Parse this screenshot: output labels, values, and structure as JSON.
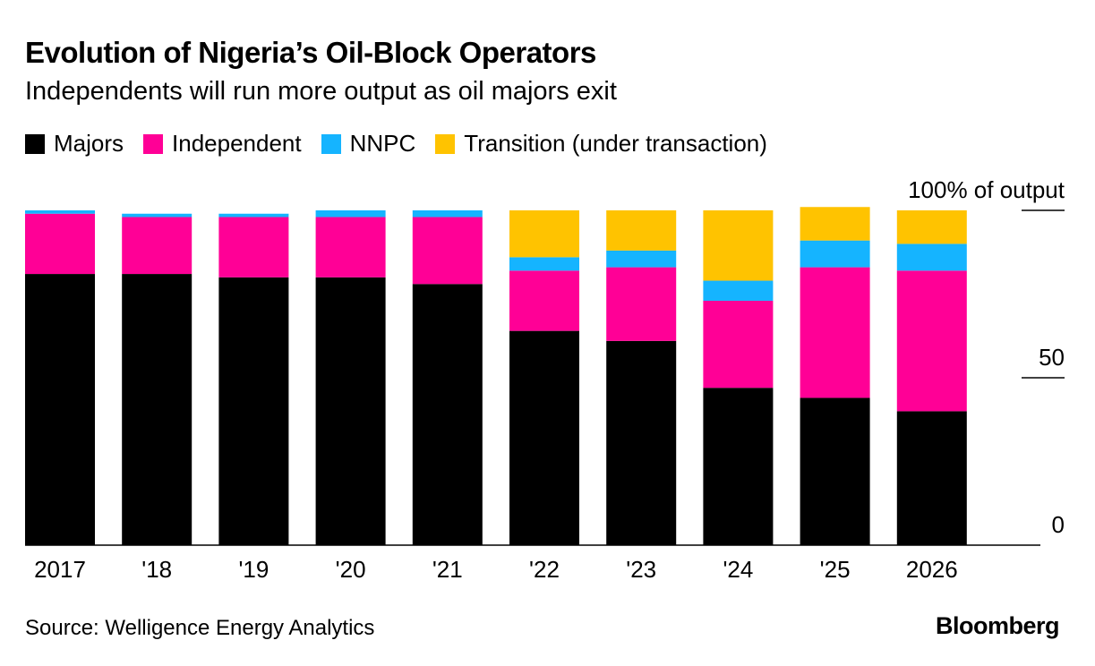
{
  "colors": {
    "Majors": "#000000",
    "Independent": "#ff0096",
    "NNPC": "#15b4ff",
    "Transition (under transaction)": "#ffc300"
  },
  "source": "Source: Welligence Energy Analytics",
  "brand": "Bloomberg",
  "chart_data": {
    "type": "bar",
    "stacked": true,
    "title": "Evolution of Nigeria’s Oil-Block Operators",
    "subtitle": "Independents will run more output as oil majors exit",
    "ylabel": "100% of output",
    "ylim": [
      0,
      100
    ],
    "yticks": [
      {
        "value": 0,
        "label": "0"
      },
      {
        "value": 50,
        "label": "50"
      },
      {
        "value": 100,
        "label": "100% of output"
      }
    ],
    "legend_position": "top-left",
    "categories": [
      "2017",
      "'18",
      "'19",
      "'20",
      "'21",
      "'22",
      "'23",
      "'24",
      "'25",
      "2026"
    ],
    "series": [
      {
        "name": "Majors",
        "values": [
          81,
          81,
          80,
          80,
          78,
          64,
          61,
          47,
          44,
          40
        ]
      },
      {
        "name": "Independent",
        "values": [
          18,
          17,
          18,
          18,
          20,
          18,
          22,
          26,
          39,
          42
        ]
      },
      {
        "name": "NNPC",
        "values": [
          1,
          1,
          1,
          2,
          2,
          4,
          5,
          6,
          8,
          8
        ]
      },
      {
        "name": "Transition (under transaction)",
        "values": [
          0,
          0,
          0,
          0,
          0,
          14,
          12,
          21,
          10,
          10
        ]
      }
    ]
  }
}
